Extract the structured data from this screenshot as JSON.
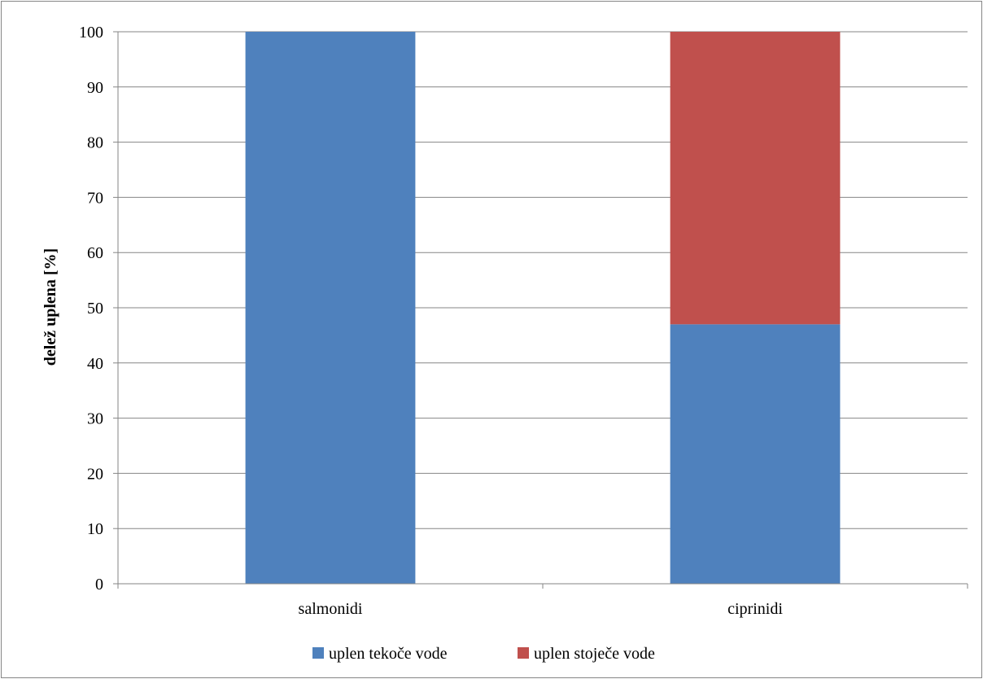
{
  "chart_data": {
    "type": "bar",
    "stacked": true,
    "categories": [
      "salmonidi",
      "ciprinidi"
    ],
    "series": [
      {
        "name": "uplen tekoče vode",
        "values": [
          100,
          47
        ],
        "color": "#4f81bd"
      },
      {
        "name": "uplen stoječe vode",
        "values": [
          0,
          53
        ],
        "color": "#c0504d"
      }
    ],
    "title": "",
    "xlabel": "",
    "ylabel": "delež uplena [%]",
    "ylim": [
      0,
      100
    ],
    "yticks": [
      0,
      10,
      20,
      30,
      40,
      50,
      60,
      70,
      80,
      90,
      100
    ],
    "grid": true,
    "legend_position": "bottom"
  }
}
